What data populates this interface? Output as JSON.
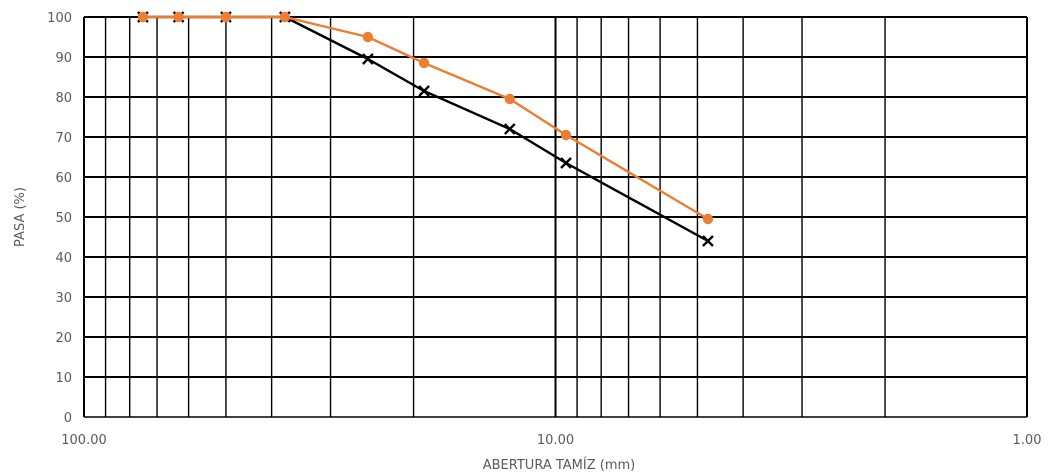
{
  "chart_data": {
    "type": "line",
    "xlabel": "ABERTURA TAMÍZ (mm)",
    "ylabel": "PASA (%)",
    "x_scale": "log",
    "x_reversed": true,
    "xlim": [
      100,
      1
    ],
    "ylim": [
      0,
      100
    ],
    "grid": true,
    "x_tick_labels": [
      "100.00",
      "10.00",
      "1.00"
    ],
    "x_ticks": [
      100,
      10,
      1
    ],
    "y_ticks": [
      0,
      10,
      20,
      30,
      40,
      50,
      60,
      70,
      80,
      90,
      100
    ],
    "x_minor_gridlines": [
      90,
      80,
      70,
      60,
      50,
      40,
      30,
      20,
      9,
      8,
      7,
      6,
      5,
      4,
      3,
      2
    ],
    "series": [
      {
        "color": "#000000",
        "marker": "x",
        "points": [
          {
            "x": 75,
            "y": 100
          },
          {
            "x": 63,
            "y": 100
          },
          {
            "x": 50,
            "y": 100
          },
          {
            "x": 37.5,
            "y": 100
          },
          {
            "x": 25,
            "y": 89.5
          },
          {
            "x": 19,
            "y": 81.5
          },
          {
            "x": 12.5,
            "y": 72
          },
          {
            "x": 9.5,
            "y": 63.5
          },
          {
            "x": 4.75,
            "y": 44
          }
        ]
      },
      {
        "color": "#ED7D31",
        "marker": "circle",
        "points": [
          {
            "x": 75,
            "y": 100
          },
          {
            "x": 63,
            "y": 100
          },
          {
            "x": 50,
            "y": 100
          },
          {
            "x": 37.5,
            "y": 100
          },
          {
            "x": 25,
            "y": 95
          },
          {
            "x": 19,
            "y": 88.5
          },
          {
            "x": 12.5,
            "y": 79.5
          },
          {
            "x": 9.5,
            "y": 70.5
          },
          {
            "x": 4.75,
            "y": 49.5
          }
        ]
      }
    ]
  }
}
